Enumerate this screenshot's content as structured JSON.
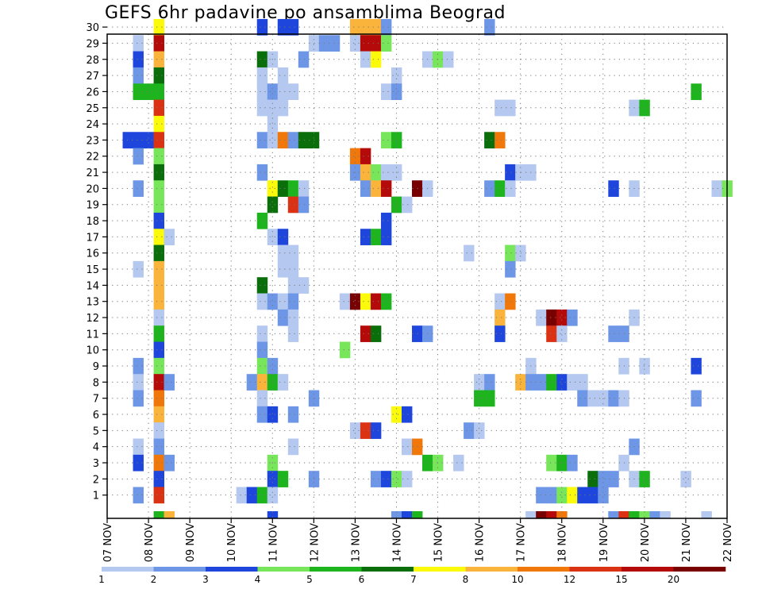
{
  "title": "GEFS 6hr padavine po ansamblima Beograd",
  "chart_data": {
    "type": "heatmap",
    "title": "GEFS 6hr padavine po ansamblima Beograd",
    "xlabel": "",
    "ylabel": "",
    "x_ticks": [
      "07 NOV",
      "08 NOV",
      "09 NOV",
      "10 NOV",
      "11 NOV",
      "12 NOV",
      "13 NOV",
      "14 NOV",
      "15 NOV",
      "16 NOV",
      "17 NOV",
      "18 NOV",
      "19 NOV",
      "20 NOV",
      "21 NOV",
      "22 NOV"
    ],
    "y_ticks": [
      1,
      2,
      3,
      4,
      5,
      6,
      7,
      8,
      9,
      10,
      11,
      12,
      13,
      14,
      15,
      16,
      17,
      18,
      19,
      20,
      21,
      22,
      23,
      24,
      25,
      26,
      27,
      28,
      29,
      30
    ],
    "steps_per_day": 4,
    "n_steps": 61,
    "members": 30,
    "grid": true,
    "legend_position": "bottom",
    "legend": {
      "boundaries": [
        "1",
        "2",
        "3",
        "4",
        "5",
        "6",
        "7",
        "8",
        "10",
        "12",
        "15",
        "20"
      ],
      "colors": [
        "#b4c8f0",
        "#6e96e6",
        "#1e46dc",
        "#78e65a",
        "#1eb41e",
        "#0a6e0a",
        "#fafa0a",
        "#fab43c",
        "#f0780a",
        "#dc3214",
        "#b40a0a",
        "#780000"
      ]
    },
    "cells_note": "each cell = [member, step_index_from_07NOV_00UTC, color_class(1-12)]",
    "cells": [
      [
        30,
        5,
        7
      ],
      [
        30,
        15,
        3
      ],
      [
        30,
        17,
        3
      ],
      [
        30,
        18,
        3
      ],
      [
        30,
        24,
        8
      ],
      [
        30,
        25,
        8
      ],
      [
        30,
        26,
        8
      ],
      [
        30,
        27,
        2
      ],
      [
        30,
        37,
        2
      ],
      [
        29,
        3,
        1
      ],
      [
        29,
        5,
        11
      ],
      [
        29,
        20,
        1
      ],
      [
        29,
        21,
        2
      ],
      [
        29,
        22,
        2
      ],
      [
        29,
        24,
        1
      ],
      [
        29,
        25,
        11
      ],
      [
        29,
        26,
        11
      ],
      [
        29,
        27,
        4
      ],
      [
        28,
        3,
        3
      ],
      [
        28,
        5,
        8
      ],
      [
        28,
        15,
        6
      ],
      [
        28,
        16,
        1
      ],
      [
        28,
        19,
        2
      ],
      [
        28,
        25,
        1
      ],
      [
        28,
        26,
        7
      ],
      [
        28,
        31,
        1
      ],
      [
        28,
        32,
        4
      ],
      [
        28,
        33,
        1
      ],
      [
        27,
        3,
        2
      ],
      [
        27,
        5,
        6
      ],
      [
        27,
        15,
        1
      ],
      [
        27,
        17,
        1
      ],
      [
        27,
        28,
        1
      ],
      [
        26,
        3,
        5
      ],
      [
        26,
        4,
        5
      ],
      [
        26,
        5,
        5
      ],
      [
        26,
        15,
        1
      ],
      [
        26,
        16,
        2
      ],
      [
        26,
        17,
        1
      ],
      [
        26,
        18,
        1
      ],
      [
        26,
        27,
        1
      ],
      [
        26,
        28,
        2
      ],
      [
        26,
        57,
        5
      ],
      [
        25,
        5,
        10
      ],
      [
        25,
        15,
        1
      ],
      [
        25,
        16,
        1
      ],
      [
        25,
        17,
        1
      ],
      [
        25,
        38,
        1
      ],
      [
        25,
        39,
        1
      ],
      [
        25,
        51,
        1
      ],
      [
        25,
        52,
        5
      ],
      [
        24,
        5,
        7
      ],
      [
        24,
        16,
        1
      ],
      [
        23,
        2,
        3
      ],
      [
        23,
        3,
        3
      ],
      [
        23,
        4,
        3
      ],
      [
        23,
        5,
        10
      ],
      [
        23,
        15,
        2
      ],
      [
        23,
        16,
        1
      ],
      [
        23,
        17,
        9
      ],
      [
        23,
        18,
        2
      ],
      [
        23,
        19,
        6
      ],
      [
        23,
        20,
        6
      ],
      [
        23,
        27,
        4
      ],
      [
        23,
        28,
        5
      ],
      [
        23,
        37,
        6
      ],
      [
        23,
        38,
        9
      ],
      [
        22,
        3,
        2
      ],
      [
        22,
        5,
        4
      ],
      [
        22,
        24,
        9
      ],
      [
        22,
        25,
        11
      ],
      [
        21,
        5,
        6
      ],
      [
        21,
        15,
        2
      ],
      [
        21,
        24,
        2
      ],
      [
        21,
        25,
        8
      ],
      [
        21,
        26,
        4
      ],
      [
        21,
        27,
        1
      ],
      [
        21,
        28,
        1
      ],
      [
        21,
        39,
        3
      ],
      [
        21,
        40,
        1
      ],
      [
        21,
        41,
        1
      ],
      [
        20,
        3,
        2
      ],
      [
        20,
        5,
        4
      ],
      [
        20,
        16,
        7
      ],
      [
        20,
        17,
        6
      ],
      [
        20,
        18,
        5
      ],
      [
        20,
        19,
        1
      ],
      [
        20,
        25,
        2
      ],
      [
        20,
        26,
        8
      ],
      [
        20,
        27,
        11
      ],
      [
        20,
        30,
        12
      ],
      [
        20,
        31,
        1
      ],
      [
        20,
        37,
        2
      ],
      [
        20,
        38,
        5
      ],
      [
        20,
        39,
        1
      ],
      [
        20,
        49,
        3
      ],
      [
        20,
        51,
        1
      ],
      [
        20,
        59,
        1
      ],
      [
        20,
        60,
        4
      ],
      [
        19,
        5,
        4
      ],
      [
        19,
        16,
        6
      ],
      [
        19,
        18,
        10
      ],
      [
        19,
        19,
        2
      ],
      [
        19,
        28,
        5
      ],
      [
        19,
        29,
        1
      ],
      [
        18,
        5,
        3
      ],
      [
        18,
        15,
        5
      ],
      [
        18,
        27,
        3
      ],
      [
        17,
        5,
        7
      ],
      [
        17,
        6,
        1
      ],
      [
        17,
        16,
        1
      ],
      [
        17,
        17,
        3
      ],
      [
        17,
        25,
        3
      ],
      [
        17,
        26,
        5
      ],
      [
        17,
        27,
        3
      ],
      [
        16,
        5,
        6
      ],
      [
        16,
        17,
        1
      ],
      [
        16,
        18,
        1
      ],
      [
        16,
        35,
        1
      ],
      [
        16,
        39,
        4
      ],
      [
        16,
        40,
        1
      ],
      [
        15,
        3,
        1
      ],
      [
        15,
        5,
        8
      ],
      [
        15,
        17,
        1
      ],
      [
        15,
        18,
        1
      ],
      [
        15,
        39,
        2
      ],
      [
        14,
        5,
        8
      ],
      [
        14,
        15,
        6
      ],
      [
        14,
        18,
        1
      ],
      [
        14,
        19,
        1
      ],
      [
        13,
        5,
        8
      ],
      [
        13,
        15,
        1
      ],
      [
        13,
        16,
        2
      ],
      [
        13,
        17,
        1
      ],
      [
        13,
        18,
        2
      ],
      [
        13,
        23,
        1
      ],
      [
        13,
        24,
        12
      ],
      [
        13,
        25,
        7
      ],
      [
        13,
        26,
        11
      ],
      [
        13,
        27,
        5
      ],
      [
        13,
        38,
        1
      ],
      [
        13,
        39,
        9
      ],
      [
        12,
        5,
        1
      ],
      [
        12,
        17,
        2
      ],
      [
        12,
        18,
        1
      ],
      [
        12,
        38,
        8
      ],
      [
        12,
        42,
        1
      ],
      [
        12,
        43,
        12
      ],
      [
        12,
        44,
        11
      ],
      [
        12,
        45,
        2
      ],
      [
        12,
        51,
        1
      ],
      [
        11,
        5,
        5
      ],
      [
        11,
        15,
        1
      ],
      [
        11,
        18,
        1
      ],
      [
        11,
        25,
        11
      ],
      [
        11,
        26,
        6
      ],
      [
        11,
        30,
        3
      ],
      [
        11,
        31,
        2
      ],
      [
        11,
        38,
        3
      ],
      [
        11,
        43,
        10
      ],
      [
        11,
        44,
        1
      ],
      [
        11,
        49,
        2
      ],
      [
        11,
        50,
        2
      ],
      [
        10,
        5,
        3
      ],
      [
        10,
        15,
        2
      ],
      [
        10,
        23,
        4
      ],
      [
        9,
        3,
        2
      ],
      [
        9,
        5,
        4
      ],
      [
        9,
        15,
        4
      ],
      [
        9,
        16,
        2
      ],
      [
        9,
        41,
        1
      ],
      [
        9,
        50,
        1
      ],
      [
        9,
        52,
        1
      ],
      [
        9,
        57,
        3
      ],
      [
        8,
        3,
        1
      ],
      [
        8,
        5,
        11
      ],
      [
        8,
        6,
        2
      ],
      [
        8,
        14,
        2
      ],
      [
        8,
        15,
        8
      ],
      [
        8,
        16,
        5
      ],
      [
        8,
        17,
        1
      ],
      [
        8,
        36,
        1
      ],
      [
        8,
        37,
        2
      ],
      [
        8,
        40,
        8
      ],
      [
        8,
        41,
        2
      ],
      [
        8,
        42,
        2
      ],
      [
        8,
        43,
        5
      ],
      [
        8,
        44,
        3
      ],
      [
        8,
        45,
        1
      ],
      [
        8,
        46,
        1
      ],
      [
        7,
        3,
        2
      ],
      [
        7,
        5,
        9
      ],
      [
        7,
        15,
        1
      ],
      [
        7,
        20,
        2
      ],
      [
        7,
        36,
        5
      ],
      [
        7,
        37,
        5
      ],
      [
        7,
        46,
        2
      ],
      [
        7,
        47,
        1
      ],
      [
        7,
        48,
        1
      ],
      [
        7,
        49,
        2
      ],
      [
        7,
        50,
        1
      ],
      [
        7,
        57,
        2
      ],
      [
        6,
        5,
        8
      ],
      [
        6,
        15,
        2
      ],
      [
        6,
        16,
        3
      ],
      [
        6,
        18,
        2
      ],
      [
        6,
        28,
        7
      ],
      [
        6,
        29,
        3
      ],
      [
        5,
        5,
        1
      ],
      [
        5,
        24,
        1
      ],
      [
        5,
        25,
        10
      ],
      [
        5,
        26,
        3
      ],
      [
        5,
        35,
        2
      ],
      [
        5,
        36,
        1
      ],
      [
        4,
        3,
        1
      ],
      [
        4,
        5,
        2
      ],
      [
        4,
        18,
        1
      ],
      [
        4,
        29,
        1
      ],
      [
        4,
        30,
        9
      ],
      [
        4,
        51,
        2
      ],
      [
        3,
        3,
        3
      ],
      [
        3,
        5,
        9
      ],
      [
        3,
        6,
        2
      ],
      [
        3,
        16,
        4
      ],
      [
        3,
        31,
        5
      ],
      [
        3,
        32,
        4
      ],
      [
        3,
        34,
        1
      ],
      [
        3,
        43,
        4
      ],
      [
        3,
        44,
        5
      ],
      [
        3,
        45,
        2
      ],
      [
        3,
        50,
        1
      ],
      [
        2,
        5,
        3
      ],
      [
        2,
        16,
        3
      ],
      [
        2,
        17,
        5
      ],
      [
        2,
        20,
        2
      ],
      [
        2,
        26,
        2
      ],
      [
        2,
        27,
        3
      ],
      [
        2,
        28,
        4
      ],
      [
        2,
        29,
        1
      ],
      [
        2,
        47,
        6
      ],
      [
        2,
        48,
        2
      ],
      [
        2,
        49,
        2
      ],
      [
        2,
        51,
        1
      ],
      [
        2,
        52,
        5
      ],
      [
        2,
        56,
        1
      ],
      [
        1,
        3,
        2
      ],
      [
        1,
        5,
        10
      ],
      [
        1,
        13,
        1
      ],
      [
        1,
        14,
        3
      ],
      [
        1,
        15,
        5
      ],
      [
        1,
        16,
        1
      ],
      [
        1,
        42,
        2
      ],
      [
        1,
        43,
        2
      ],
      [
        1,
        44,
        4
      ],
      [
        1,
        45,
        7
      ],
      [
        1,
        46,
        3
      ],
      [
        1,
        47,
        3
      ],
      [
        1,
        48,
        2
      ]
    ],
    "bottom_strip": [
      [
        5,
        5
      ],
      [
        6,
        8
      ],
      [
        16,
        3
      ],
      [
        28,
        2
      ],
      [
        29,
        3
      ],
      [
        30,
        5
      ],
      [
        41,
        1
      ],
      [
        42,
        12
      ],
      [
        43,
        11
      ],
      [
        44,
        9
      ],
      [
        49,
        2
      ],
      [
        50,
        10
      ],
      [
        51,
        5
      ],
      [
        52,
        4
      ],
      [
        53,
        2
      ],
      [
        54,
        1
      ],
      [
        58,
        1
      ]
    ]
  }
}
